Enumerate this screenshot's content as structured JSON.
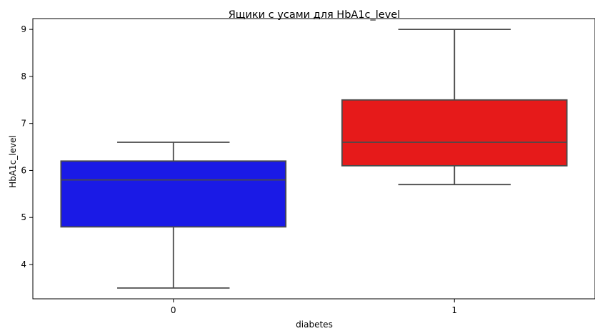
{
  "chart_data": {
    "type": "box",
    "title": "Ящики с усами для HbA1c_level",
    "xlabel": "diabetes",
    "ylabel": "HbA1c_level",
    "categories": [
      "0",
      "1"
    ],
    "ylim": [
      3.27,
      9.23
    ],
    "yticks": [
      4,
      5,
      6,
      7,
      8,
      9
    ],
    "grid": false,
    "boxes": [
      {
        "category": "0",
        "whisker_low": 3.5,
        "q1": 4.8,
        "median": 5.8,
        "q3": 6.2,
        "whisker_high": 6.6,
        "color": "#1a1ae6"
      },
      {
        "category": "1",
        "whisker_low": 5.7,
        "q1": 6.1,
        "median": 6.6,
        "q3": 7.5,
        "whisker_high": 9.0,
        "color": "#e61a1a"
      }
    ],
    "line_color": "#4a4a4a"
  }
}
